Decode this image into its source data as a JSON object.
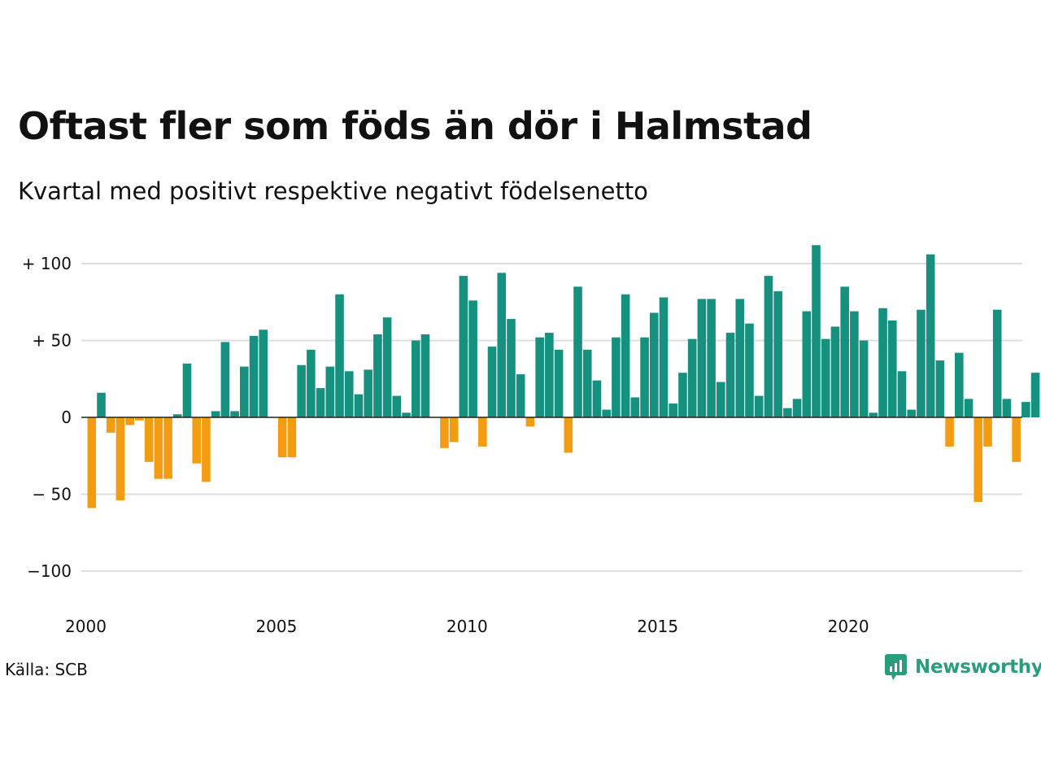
{
  "title": "Oftast fler som föds än dör i Halmstad",
  "subtitle": "Kvartal med positivt respektive negativt födelsenetto",
  "source": "Källa: SCB",
  "brand": "Newsworthy",
  "colors": {
    "positive": "#17917f",
    "negative": "#f39c12",
    "brand": "#2a9d7c",
    "grid": "#dddddd"
  },
  "chart_data": {
    "type": "bar",
    "x_axis": {
      "start_year": 2000,
      "tick_labels": [
        "2000",
        "2005",
        "2010",
        "2015",
        "2020"
      ]
    },
    "y_axis": {
      "range": [
        -120,
        115
      ],
      "ticks": [
        100,
        50,
        0,
        -50,
        -100
      ],
      "tick_labels": [
        "+ 100",
        "+  50",
        "0",
        "− 50",
        "−100"
      ]
    },
    "grid": true,
    "series": [
      {
        "values": [
          -59,
          16,
          -10,
          -54,
          -5,
          -2,
          -29,
          -40,
          -40,
          2,
          35,
          -30,
          -42,
          4,
          49,
          4,
          33,
          53,
          57,
          0,
          -26,
          -26,
          34,
          44,
          19,
          33,
          80,
          30,
          15,
          31,
          54,
          65,
          14,
          3,
          50,
          54,
          0,
          -20,
          -16,
          92,
          76,
          -19,
          46,
          94,
          64,
          28,
          -6,
          52,
          55,
          44,
          -23,
          85,
          44,
          24,
          5,
          52,
          80,
          13,
          52,
          68,
          78,
          9,
          29,
          51,
          77,
          77,
          23,
          55,
          77,
          61,
          14,
          92,
          82,
          6,
          12,
          69,
          112,
          51,
          59,
          85,
          69,
          50,
          3,
          71,
          63,
          30,
          5,
          70,
          106,
          37,
          -19,
          42,
          12,
          -55,
          -19,
          70,
          12,
          -29,
          10,
          29
        ]
      }
    ]
  }
}
